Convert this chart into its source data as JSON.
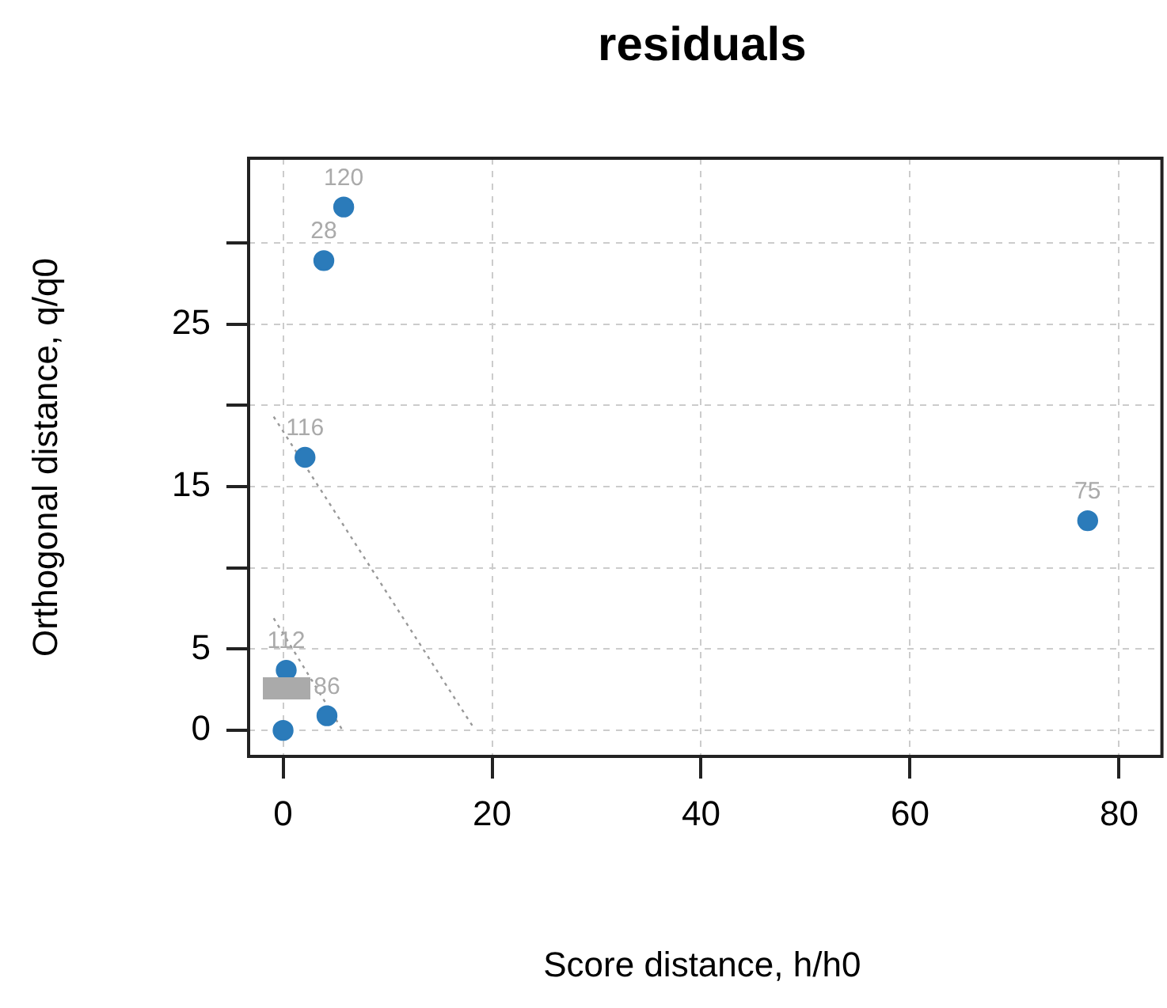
{
  "chart_data": {
    "type": "scatter",
    "title": "residuals",
    "xlabel": "Score distance, h/h0",
    "ylabel": "Orthogonal distance, q/q0",
    "series": [
      {
        "type": "scatter",
        "color": "#2b7bba",
        "x": [
          5.8,
          3.9,
          2.1,
          77.0,
          0.3,
          4.2,
          0
        ],
        "values": [
          32.2,
          28.9,
          16.8,
          12.9,
          3.7,
          0.9,
          0
        ]
      },
      {
        "type": "line",
        "color": "#999999",
        "marker": "none",
        "line_style": "dotted",
        "x": [
          -0.9,
          18.1
        ],
        "values": [
          19.3,
          0.3
        ]
      },
      {
        "type": "line",
        "color": "#999999",
        "marker": "none",
        "line_style": "dotted",
        "x": [
          -0.9,
          5.6
        ],
        "values": [
          6.9,
          0.1
        ]
      }
    ],
    "annotations": [
      {
        "text": "120",
        "x": 5.8,
        "y": 32.2
      },
      {
        "text": "28",
        "x": 3.9,
        "y": 28.9
      },
      {
        "text": "116",
        "x": 2.1,
        "y": 16.8
      },
      {
        "text": "75",
        "x": 77.0,
        "y": 12.9
      },
      {
        "text": "112",
        "x": 0.3,
        "y": 3.7
      },
      {
        "text": "86",
        "x": 4.2,
        "y": 0.9
      }
    ],
    "xlim": [
      -3.3,
      83.5
    ],
    "ylim": [
      -1.6,
      35.2
    ],
    "xticks": [
      0,
      20,
      40,
      60,
      80
    ],
    "yticks": [
      0,
      5,
      {
        "value": 10,
        "label": null
      },
      15,
      {
        "value": 20,
        "label": null
      },
      25,
      {
        "value": 30,
        "label": null
      }
    ],
    "grid": true,
    "marker": "circle",
    "legend": false
  }
}
